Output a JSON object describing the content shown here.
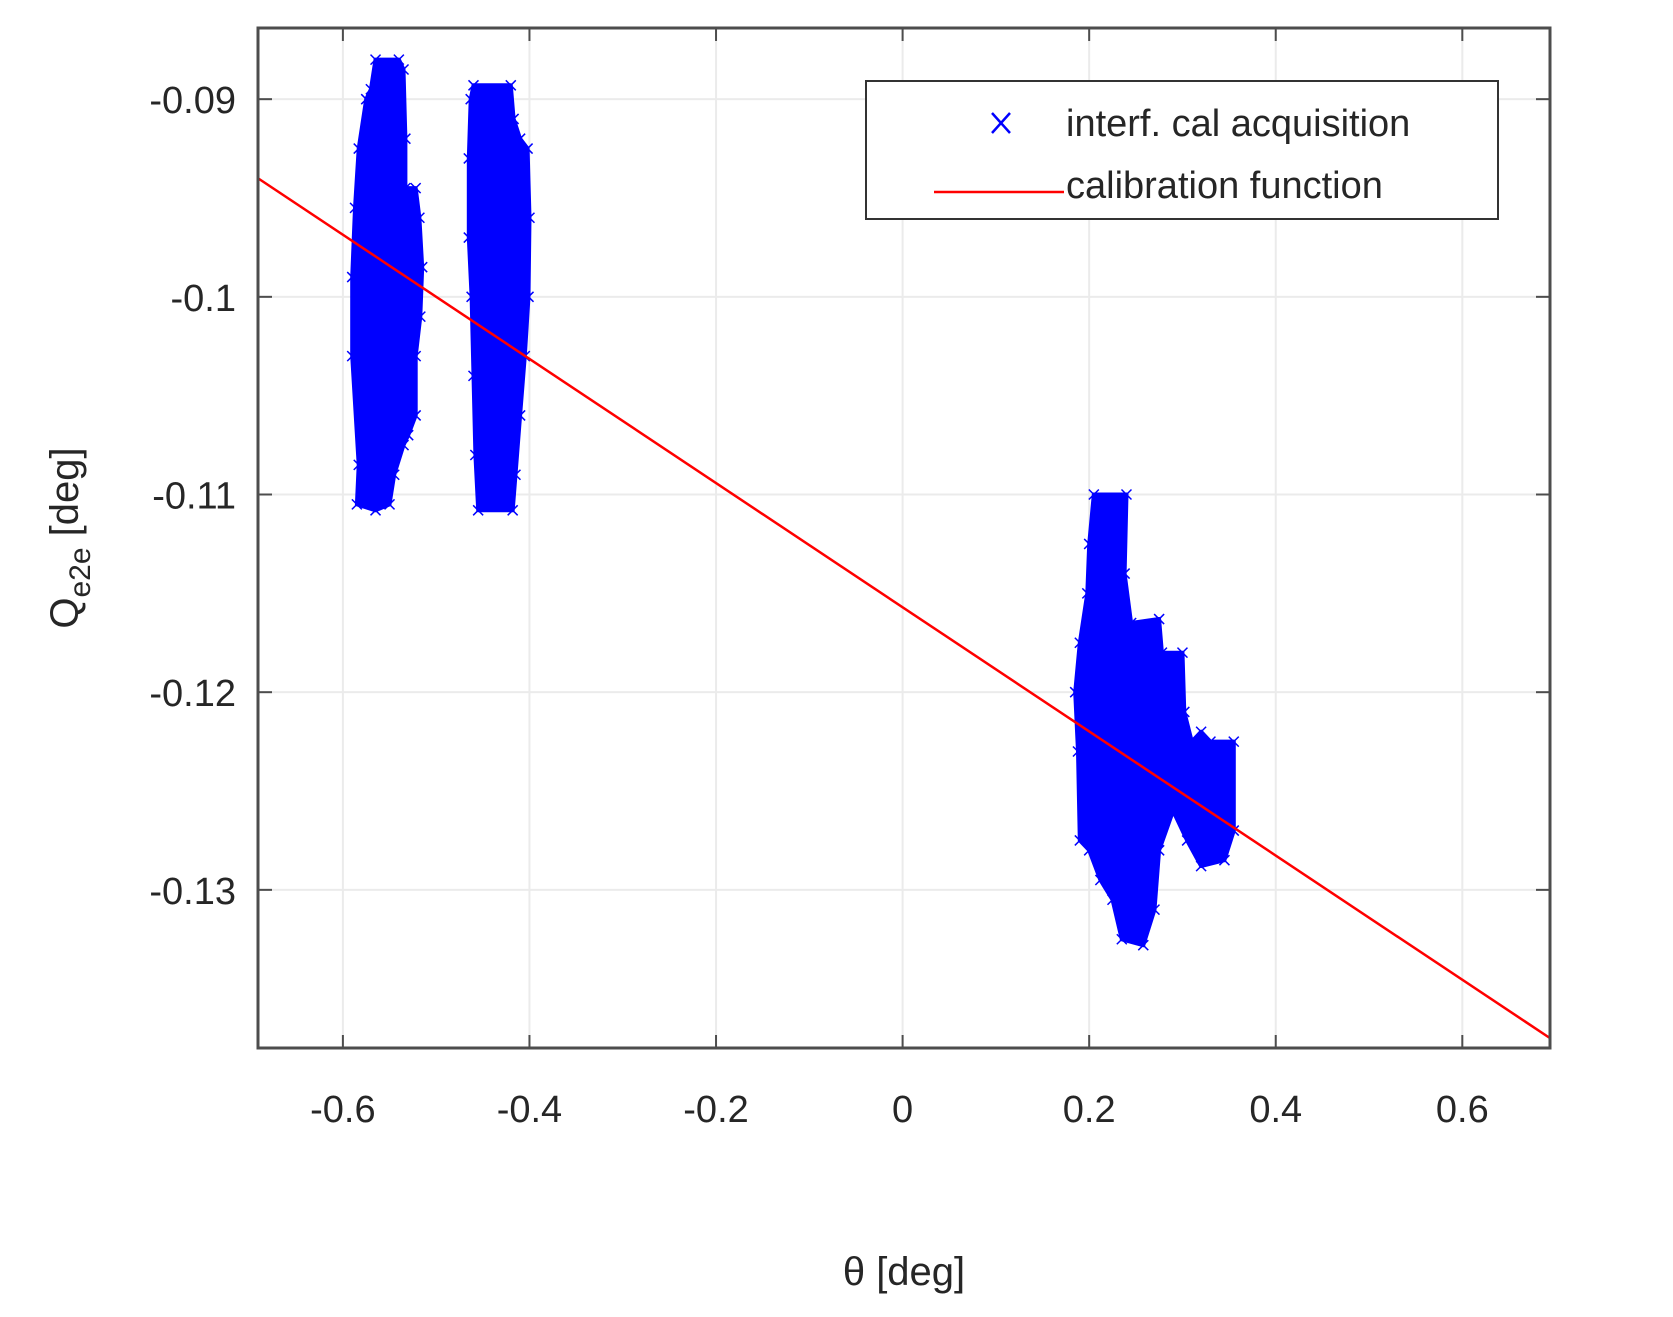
{
  "chart_data": {
    "type": "scatter",
    "title": "",
    "xlabel": "θ [deg]",
    "ylabel_main": "Q",
    "ylabel_sub": "e2e",
    "ylabel_suffix": " [deg]",
    "xlim": [
      -0.691,
      0.694
    ],
    "ylim": [
      -0.138,
      -0.0864
    ],
    "grid": true,
    "legend_position": "northeast",
    "x_ticks": [
      -0.6,
      -0.4,
      -0.2,
      0,
      0.2,
      0.4,
      0.6
    ],
    "x_tick_labels": [
      "-0.6",
      "-0.4",
      "-0.2",
      "0",
      "0.2",
      "0.4",
      "0.6"
    ],
    "y_ticks": [
      -0.09,
      -0.1,
      -0.11,
      -0.12,
      -0.13
    ],
    "y_tick_labels": [
      "-0.09",
      "-0.1",
      "-0.11",
      "-0.12",
      "-0.13"
    ],
    "series": [
      {
        "name": "interf. cal acquisition",
        "kind": "scatter",
        "marker": "x",
        "color": "#0000ff",
        "clusters": [
          {
            "label": "cluster near θ=-0.55",
            "x_center": -0.55,
            "x_range": [
              -0.59,
              -0.515
            ],
            "y_range": [
              -0.1108,
              -0.088
            ],
            "outline": [
              [
                -0.565,
                -0.088
              ],
              [
                -0.54,
                -0.088
              ],
              [
                -0.535,
                -0.0885
              ],
              [
                -0.533,
                -0.092
              ],
              [
                -0.533,
                -0.0945
              ],
              [
                -0.522,
                -0.0945
              ],
              [
                -0.518,
                -0.096
              ],
              [
                -0.515,
                -0.0985
              ],
              [
                -0.517,
                -0.101
              ],
              [
                -0.522,
                -0.103
              ],
              [
                -0.522,
                -0.106
              ],
              [
                -0.53,
                -0.107
              ],
              [
                -0.535,
                -0.1075
              ],
              [
                -0.545,
                -0.109
              ],
              [
                -0.55,
                -0.1105
              ],
              [
                -0.565,
                -0.1108
              ],
              [
                -0.585,
                -0.1105
              ],
              [
                -0.583,
                -0.1085
              ],
              [
                -0.59,
                -0.103
              ],
              [
                -0.59,
                -0.099
              ],
              [
                -0.587,
                -0.0955
              ],
              [
                -0.583,
                -0.0925
              ],
              [
                -0.575,
                -0.09
              ],
              [
                -0.57,
                -0.0895
              ]
            ]
          },
          {
            "label": "cluster near θ=-0.43",
            "x_center": -0.435,
            "x_range": [
              -0.465,
              -0.4
            ],
            "y_range": [
              -0.1108,
              -0.0893
            ],
            "outline": [
              [
                -0.46,
                -0.0893
              ],
              [
                -0.42,
                -0.0893
              ],
              [
                -0.417,
                -0.091
              ],
              [
                -0.41,
                -0.092
              ],
              [
                -0.402,
                -0.0925
              ],
              [
                -0.4,
                -0.096
              ],
              [
                -0.401,
                -0.1
              ],
              [
                -0.405,
                -0.103
              ],
              [
                -0.41,
                -0.106
              ],
              [
                -0.415,
                -0.109
              ],
              [
                -0.418,
                -0.1108
              ],
              [
                -0.455,
                -0.1108
              ],
              [
                -0.458,
                -0.108
              ],
              [
                -0.46,
                -0.104
              ],
              [
                -0.462,
                -0.1
              ],
              [
                -0.465,
                -0.097
              ],
              [
                -0.465,
                -0.093
              ],
              [
                -0.463,
                -0.09
              ]
            ]
          },
          {
            "label": "cluster near θ=0.25",
            "x_center": 0.25,
            "x_range": [
              0.185,
              0.355
            ],
            "y_range": [
              -0.1328,
              -0.11
            ],
            "outline": [
              [
                0.205,
                -0.11
              ],
              [
                0.24,
                -0.11
              ],
              [
                0.238,
                -0.114
              ],
              [
                0.245,
                -0.1165
              ],
              [
                0.275,
                -0.1163
              ],
              [
                0.278,
                -0.118
              ],
              [
                0.3,
                -0.118
              ],
              [
                0.302,
                -0.121
              ],
              [
                0.31,
                -0.1225
              ],
              [
                0.32,
                -0.122
              ],
              [
                0.33,
                -0.1225
              ],
              [
                0.355,
                -0.1225
              ],
              [
                0.355,
                -0.127
              ],
              [
                0.345,
                -0.1285
              ],
              [
                0.32,
                -0.1288
              ],
              [
                0.305,
                -0.1275
              ],
              [
                0.29,
                -0.126
              ],
              [
                0.275,
                -0.128
              ],
              [
                0.27,
                -0.131
              ],
              [
                0.258,
                -0.1328
              ],
              [
                0.235,
                -0.1325
              ],
              [
                0.225,
                -0.1305
              ],
              [
                0.212,
                -0.1295
              ],
              [
                0.2,
                -0.128
              ],
              [
                0.19,
                -0.1275
              ],
              [
                0.188,
                -0.123
              ],
              [
                0.185,
                -0.12
              ],
              [
                0.19,
                -0.1175
              ],
              [
                0.198,
                -0.115
              ],
              [
                0.2,
                -0.1125
              ]
            ]
          }
        ]
      },
      {
        "name": "calibration function",
        "kind": "line",
        "color": "#ff0000",
        "x": [
          -0.691,
          0.694
        ],
        "y": [
          -0.094,
          -0.1375
        ],
        "slope": -0.0314,
        "intercept": -0.1157
      }
    ],
    "legend": [
      {
        "label": "interf. cal acquisition",
        "symbol": "x-marker",
        "color": "#0000ff"
      },
      {
        "label": "calibration function",
        "symbol": "line",
        "color": "#ff0000"
      }
    ]
  },
  "colors": {
    "axis": "#4d4d4d",
    "grid": "#ebebeb",
    "text": "#262626",
    "scatter": "#0000ff",
    "line": "#ff0000"
  }
}
